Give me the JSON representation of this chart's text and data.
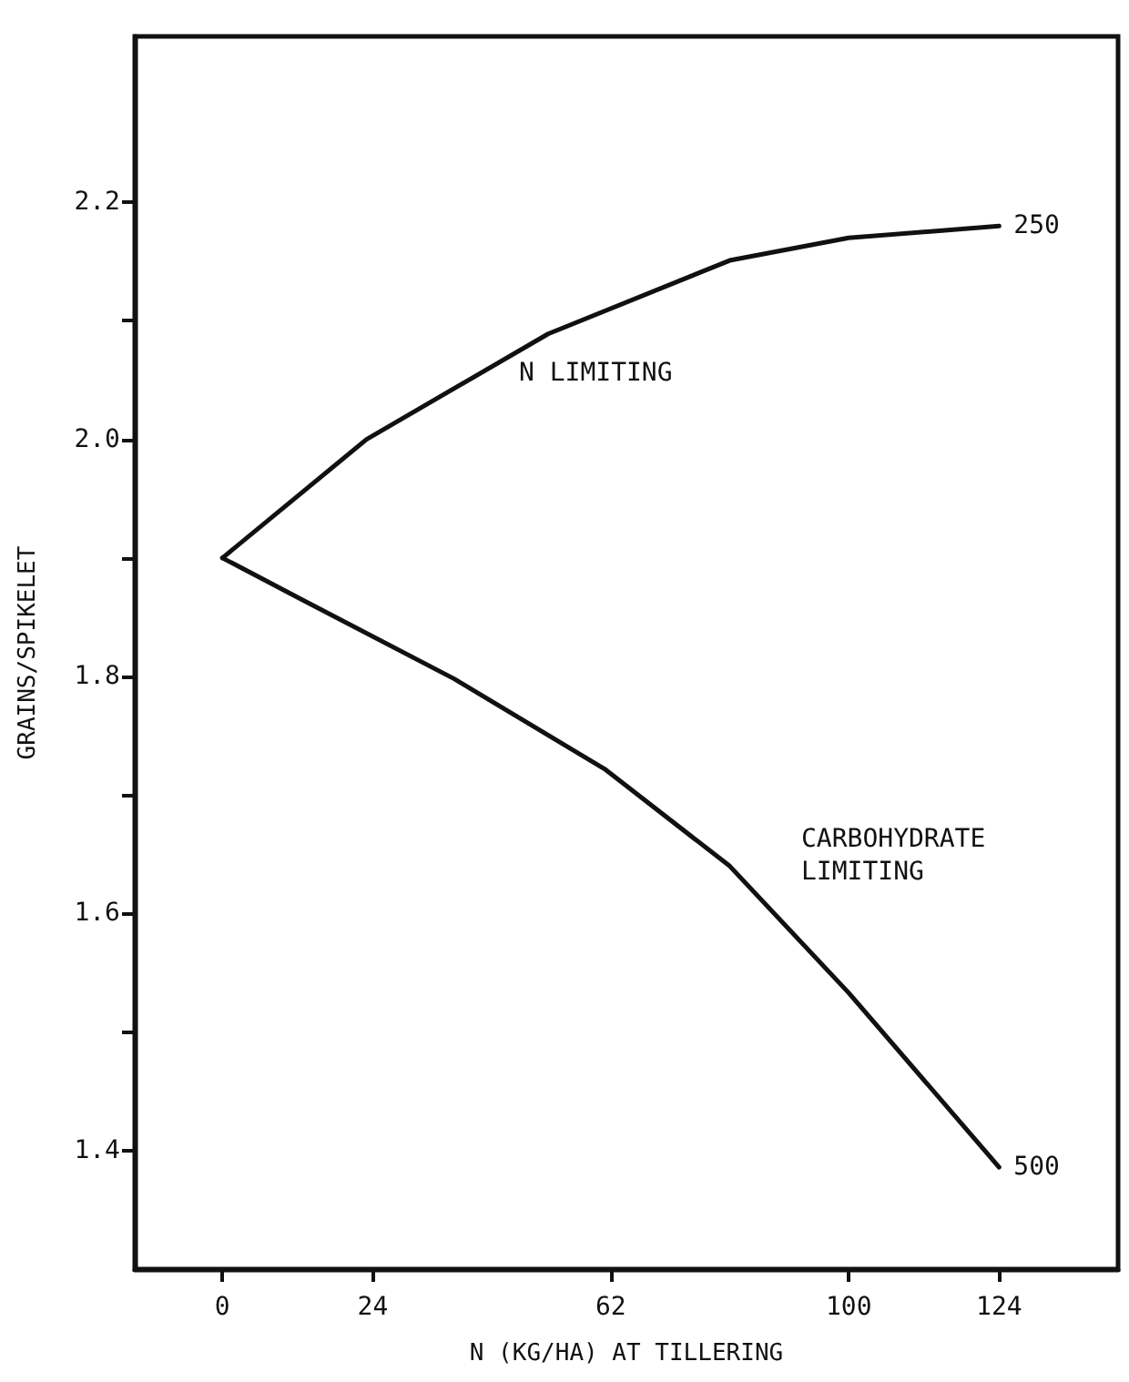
{
  "chart_data": {
    "type": "line",
    "xlabel": "N (KG/HA) AT TILLERING",
    "ylabel": "GRAINS/SPIKELET",
    "series": [
      {
        "name": "250",
        "color": "#111111",
        "x": [
          0,
          23,
          52,
          81,
          100,
          124
        ],
        "values": [
          1.9,
          2.0,
          2.089,
          2.151,
          2.17,
          2.18
        ]
      },
      {
        "name": "500",
        "color": "#111111",
        "x": [
          0,
          13,
          37,
          61,
          81,
          100,
          124
        ],
        "values": [
          1.9,
          1.864,
          1.798,
          1.722,
          1.64,
          1.533,
          1.386
        ]
      }
    ],
    "annotations": [
      "N LIMITING",
      "CARBOHYDRATE\nLIMITING"
    ],
    "xlim": [
      -14,
      143
    ],
    "xticks": [
      0,
      24,
      62,
      100,
      124
    ],
    "ylim": [
      1.3,
      2.34
    ],
    "yticks": [
      1.4,
      {
        "value": 1.5,
        "label": null
      },
      1.6,
      {
        "value": 1.7,
        "label": null
      },
      1.8,
      {
        "value": 1.9,
        "label": null
      },
      {
        "value": 2.0,
        "label": "2.0"
      },
      {
        "value": 2.1,
        "label": null
      },
      2.2
    ],
    "grid": false,
    "legend": false,
    "marker": "none",
    "line_style": "solid"
  }
}
